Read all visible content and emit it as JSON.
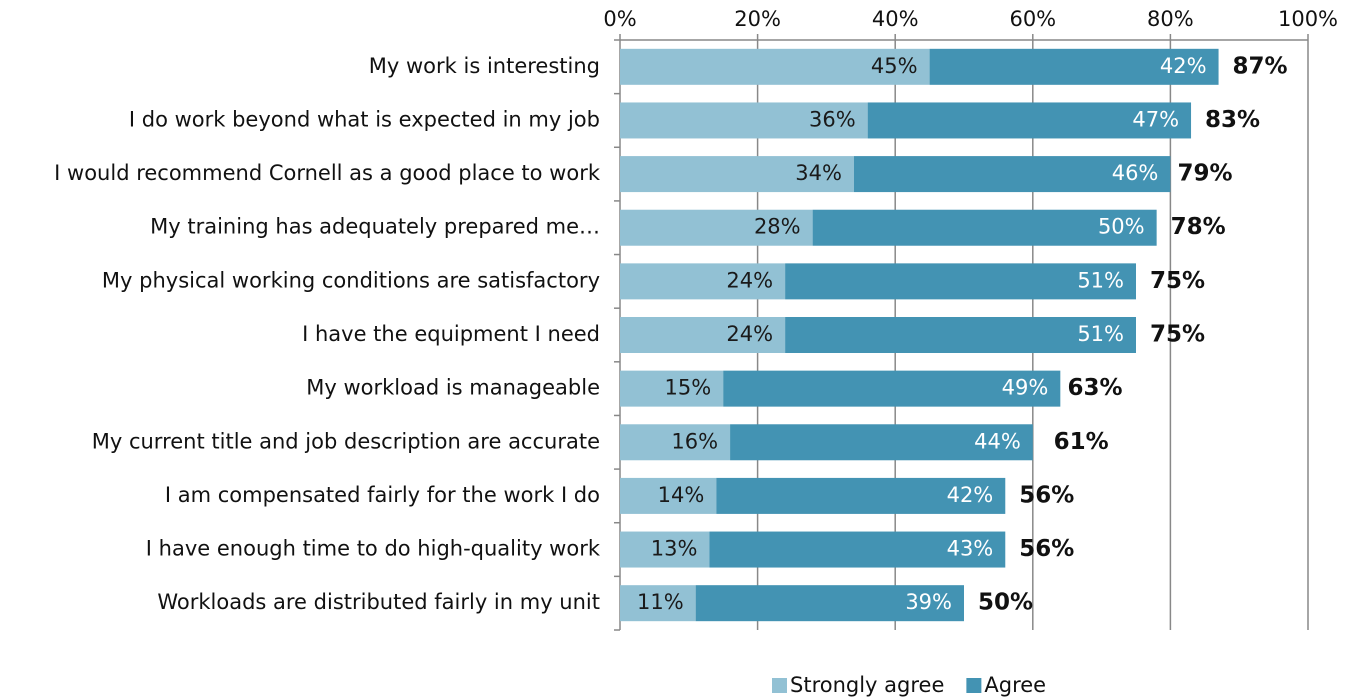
{
  "chart_data": {
    "type": "stacked-bar-horizontal",
    "categories": [
      "My work is interesting",
      "I do work beyond what is expected in my job",
      "I would recommend Cornell as a good place to work",
      "My training has adequately prepared me…",
      "My physical working conditions are satisfactory",
      "I have the equipment I need",
      "My workload is manageable",
      "My current title and job description are accurate",
      "I am compensated fairly for the work I do",
      "I have enough time to do high-quality work",
      "Workloads are distributed fairly in my unit"
    ],
    "series": [
      {
        "name": "Strongly agree",
        "color": "#92c1d4",
        "values": [
          45,
          36,
          34,
          28,
          24,
          24,
          15,
          16,
          14,
          13,
          11
        ],
        "value_labels": [
          "45%",
          "36%",
          "34%",
          "28%",
          "24%",
          "24%",
          "15%",
          "16%",
          "14%",
          "13%",
          "11%"
        ]
      },
      {
        "name": "Agree",
        "color": "#4393b3",
        "values": [
          42,
          47,
          46,
          50,
          51,
          51,
          49,
          44,
          42,
          43,
          39
        ],
        "value_labels": [
          "42%",
          "47%",
          "46%",
          "50%",
          "51%",
          "51%",
          "49%",
          "44%",
          "42%",
          "43%",
          "39%"
        ]
      }
    ],
    "totals": [
      87,
      83,
      79,
      78,
      75,
      75,
      63,
      61,
      56,
      56,
      50
    ],
    "total_labels": [
      "87%",
      "83%",
      "79%",
      "78%",
      "75%",
      "75%",
      "63%",
      "61%",
      "56%",
      "56%",
      "50%"
    ],
    "xlim": [
      0,
      100
    ],
    "xticks": [
      {
        "value": 0,
        "label": "0%"
      },
      {
        "value": 20,
        "label": "20%"
      },
      {
        "value": 40,
        "label": "40%"
      },
      {
        "value": 60,
        "label": "60%"
      },
      {
        "value": 80,
        "label": "80%"
      },
      {
        "value": 100,
        "label": "100%"
      }
    ],
    "grid": true
  }
}
